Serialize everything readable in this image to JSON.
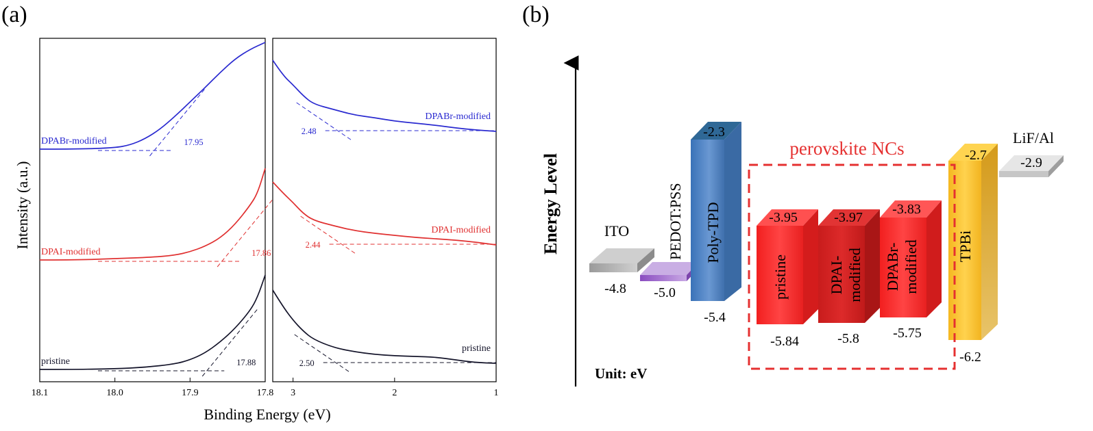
{
  "panel_a": {
    "label": "(a)",
    "xlabel": "Binding Energy (eV)",
    "ylabel": "Intensity (a.u.)"
  },
  "panel_b": {
    "label": "(b)",
    "ylabel": "Energy Level",
    "unit_label": "Unit: eV",
    "group_label": "perovskite NCs",
    "group_color": "#e53030"
  },
  "chart_data": [
    {
      "type": "line",
      "title": "",
      "panel": "(a) left – secondary electron cutoff",
      "xlabel": "Binding Energy (eV)",
      "ylabel": "Intensity (a.u.)",
      "xlim": [
        18.1,
        17.8
      ],
      "x_reversed": true,
      "x_ticks": [
        "18.1",
        "18.0",
        "17.9",
        "17.8"
      ],
      "y_ticks": false,
      "series": [
        {
          "name": "DPABr-modified",
          "color": "#2a2ad0",
          "cutoff": "17.95",
          "x": [
            18.1,
            18.05,
            18.0,
            17.98,
            17.96,
            17.94,
            17.92,
            17.9,
            17.88,
            17.86,
            17.84,
            17.82,
            17.8
          ],
          "y": [
            218,
            218,
            216,
            212,
            203,
            189,
            170,
            149,
            128,
            106,
            86,
            72,
            62
          ]
        },
        {
          "name": "DPAI-modified",
          "color": "#e03030",
          "cutoff": "17.86",
          "x": [
            18.1,
            18.05,
            18.0,
            17.95,
            17.92,
            17.9,
            17.88,
            17.86,
            17.84,
            17.82,
            17.81,
            17.8
          ],
          "y": [
            380,
            380,
            378,
            376,
            373,
            368,
            360,
            348,
            328,
            300,
            282,
            246
          ]
        },
        {
          "name": "pristine",
          "color": "#14142a",
          "cutoff": "17.88",
          "x": [
            18.1,
            18.05,
            18.0,
            17.96,
            17.92,
            17.9,
            17.88,
            17.86,
            17.84,
            17.82,
            17.81,
            17.8
          ],
          "y": [
            540,
            540,
            539,
            537,
            532,
            526,
            516,
            500,
            480,
            454,
            434,
            402
          ]
        }
      ]
    },
    {
      "type": "line",
      "title": "",
      "panel": "(a) right – valence band edge",
      "xlabel": "Binding Energy (eV)",
      "ylabel": "Intensity (a.u.)",
      "xlim": [
        3.2,
        1.0
      ],
      "x_reversed": true,
      "x_ticks": [
        "3",
        "2",
        "1"
      ],
      "y_ticks": false,
      "series": [
        {
          "name": "DPABr-modified",
          "color": "#2a2ad0",
          "onset": "2.48",
          "x": [
            3.2,
            3.1,
            3.0,
            2.9,
            2.8,
            2.6,
            2.4,
            2.2,
            2.0,
            1.8,
            1.6,
            1.4,
            1.2,
            1.0
          ],
          "y": [
            88,
            110,
            124,
            140,
            152,
            160,
            168,
            172,
            177,
            180,
            183,
            187,
            190,
            192
          ]
        },
        {
          "name": "DPAI-modified",
          "color": "#e03030",
          "onset": "2.44",
          "x": [
            3.2,
            3.1,
            3.0,
            2.9,
            2.8,
            2.6,
            2.4,
            2.2,
            2.0,
            1.8,
            1.6,
            1.4,
            1.2,
            1.0
          ],
          "y": [
            266,
            282,
            296,
            312,
            322,
            330,
            337,
            341,
            344,
            347,
            349,
            351,
            354,
            358
          ]
        },
        {
          "name": "pristine",
          "color": "#14142a",
          "onset": "2.50",
          "x": [
            3.2,
            3.1,
            3.0,
            2.9,
            2.8,
            2.6,
            2.4,
            2.2,
            2.0,
            1.8,
            1.6,
            1.4,
            1.2,
            1.0
          ],
          "y": [
            424,
            448,
            468,
            484,
            496,
            508,
            514,
            518,
            520,
            521,
            522,
            526,
            530,
            531
          ]
        }
      ]
    },
    {
      "type": "bar",
      "title": "",
      "panel": "(b) energy level diagram",
      "ylabel": "Energy Level",
      "unit": "eV",
      "categories": [
        "ITO",
        "PEDOT:PSS",
        "Poly-TPD",
        "pristine",
        "DPAI-modified",
        "DPABr-modified",
        "TPBi",
        "LiF/Al"
      ],
      "lumo": [
        null,
        null,
        -2.3,
        -3.95,
        -3.97,
        -3.83,
        -2.7,
        -2.9
      ],
      "homo": [
        -4.8,
        -5.0,
        -5.4,
        -5.84,
        -5.8,
        -5.75,
        -6.2,
        null
      ],
      "labels": {
        "ITO": "ITO",
        "PEDOT": "PEDOT:PSS",
        "PolyTPD": "Poly-TPD",
        "pristine": "pristine",
        "DPAI_1": "DPAI-",
        "DPAI_2": "modified",
        "DPABr_1": "DPABr-",
        "DPABr_2": "modified",
        "TPBi": "TPBi",
        "LiF": "LiF/Al"
      },
      "values_text": {
        "ITO_homo": "-4.8",
        "PEDOT_homo": "-5.0",
        "PolyTPD_lumo": "-2.3",
        "PolyTPD_homo": "-5.4",
        "pristine_lumo": "-3.95",
        "pristine_homo": "-5.84",
        "DPAI_lumo": "-3.97",
        "DPAI_homo": "-5.8",
        "DPABr_lumo": "-3.83",
        "DPABr_homo": "-5.75",
        "TPBi_lumo": "-2.7",
        "TPBi_homo": "-6.2",
        "LiF_value": "-2.9"
      },
      "colors": {
        "ITO": "#b5b5b5",
        "PEDOT": "#a070c8",
        "PolyTPD": "#4a7fc0",
        "pristine": "#f42a2a",
        "DPAI": "#d62424",
        "DPABr": "#ee3030",
        "TPBi": "#f4be2c",
        "LiF": "#d8d8d8"
      }
    }
  ]
}
